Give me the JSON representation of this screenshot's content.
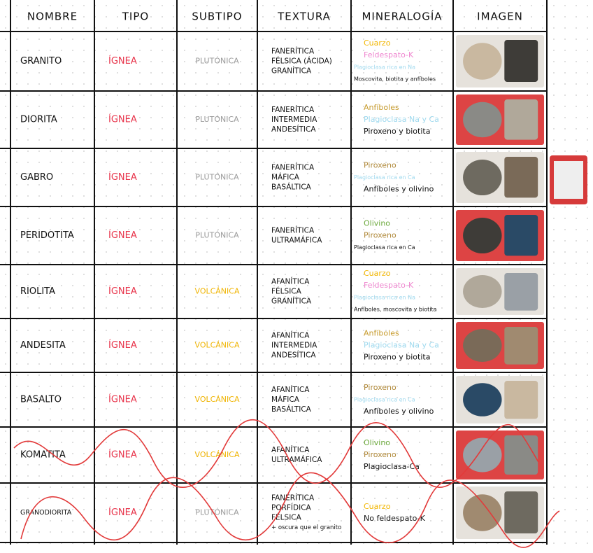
{
  "table": {
    "header": [
      "NOMBRE",
      "TIPO",
      "SUBTIPO",
      "TEXTURA",
      "MINERALOGÍA",
      "IMAGEN"
    ],
    "tipo_color": "#e8334a",
    "rows": [
      {
        "nombre": "GRANITO",
        "tipo": "ÍGNEA",
        "subtipo": "PLUTÓNICA",
        "subtipo_color": "#9a9a9a",
        "textura": [
          "FANERÍTICA",
          "FÉLSICA (ÁCIDA)",
          "GRANÍTICA"
        ],
        "mineralogia": [
          {
            "text": "Cuarzo",
            "color": "#f2b600"
          },
          {
            "text": "Feldespato-K",
            "color": "#ef86cf"
          },
          {
            "text": "Plagioclasa rica en Na",
            "color": "#9fd9ee"
          },
          {
            "text": "Moscovita, biotita y anfíboles",
            "color": "#111111"
          }
        ]
      },
      {
        "nombre": "DIORITA",
        "tipo": "ÍGNEA",
        "subtipo": "PLUTÓNICA",
        "subtipo_color": "#9a9a9a",
        "textura": [
          "FANERÍTICA",
          "INTERMEDIA",
          "ANDESÍTICA"
        ],
        "mineralogia": [
          {
            "text": "Anfíboles",
            "color": "#c79b2c"
          },
          {
            "text": "Plagioclasa Na y Ca",
            "color": "#9fd9ee"
          },
          {
            "text": "Piroxeno y biotita",
            "color": "#111111"
          }
        ]
      },
      {
        "nombre": "GABRO",
        "tipo": "ÍGNEA",
        "subtipo": "PLUTÓNICA",
        "subtipo_color": "#9a9a9a",
        "textura": [
          "FANERÍTICA",
          "MÁFICA",
          "BASÁLTICA"
        ],
        "mineralogia": [
          {
            "text": "Piroxeno",
            "color": "#b0893a"
          },
          {
            "text": "Plagioclasa rica en Ca",
            "color": "#9fd9ee"
          },
          {
            "text": "Anfíboles y olivino",
            "color": "#111111"
          }
        ]
      },
      {
        "nombre": "PERIDOTITA",
        "tipo": "ÍGNEA",
        "subtipo": "PLUTÓNICA",
        "subtipo_color": "#9a9a9a",
        "textura": [
          "FANERÍTICA",
          "ULTRAMÁFICA"
        ],
        "mineralogia": [
          {
            "text": "Olivino",
            "color": "#6aa83a"
          },
          {
            "text": "Piroxeno",
            "color": "#b0893a"
          },
          {
            "text": "Plagioclasa rica en Ca",
            "color": "#111111"
          }
        ]
      },
      {
        "nombre": "RIOLITA",
        "tipo": "ÍGNEA",
        "subtipo": "VOLCÁNICA",
        "subtipo_color": "#f0b400",
        "textura": [
          "AFANÍTICA",
          "FÉLSICA",
          "GRANÍTICA"
        ],
        "mineralogia": [
          {
            "text": "Cuarzo",
            "color": "#f2b600"
          },
          {
            "text": "Feldespato-K",
            "color": "#ef86cf"
          },
          {
            "text": "Plagioclasa rica en Na",
            "color": "#9fd9ee"
          },
          {
            "text": "Anfíboles, moscovita y biotita",
            "color": "#111111"
          }
        ]
      },
      {
        "nombre": "ANDESITA",
        "tipo": "ÍGNEA",
        "subtipo": "VOLCÁNICA",
        "subtipo_color": "#f0b400",
        "textura": [
          "AFANÍTICA",
          "INTERMEDIA",
          "ANDESÍTICA"
        ],
        "mineralogia": [
          {
            "text": "Anfíboles",
            "color": "#c79b2c"
          },
          {
            "text": "Plagioclasa Na y Ca",
            "color": "#9fd9ee"
          },
          {
            "text": "Piroxeno y biotita",
            "color": "#111111"
          }
        ]
      },
      {
        "nombre": "BASALTO",
        "tipo": "ÍGNEA",
        "subtipo": "VOLCÁNICA",
        "subtipo_color": "#f0b400",
        "textura": [
          "AFANÍTICA",
          "MÁFICA",
          "BASÁLTICA"
        ],
        "mineralogia": [
          {
            "text": "Piroxeno",
            "color": "#b0893a"
          },
          {
            "text": "Plagioclasa rica en Ca",
            "color": "#9fd9ee"
          },
          {
            "text": "Anfíboles y olivino",
            "color": "#111111"
          }
        ]
      },
      {
        "nombre": "KOMATITA",
        "tipo": "ÍGNEA",
        "subtipo": "VOLCÁNICA",
        "subtipo_color": "#f0b400",
        "textura": [
          "AFANÍTICA",
          "ULTRAMÁFICA"
        ],
        "mineralogia": [
          {
            "text": "Olivino",
            "color": "#6aa83a"
          },
          {
            "text": "Piroxeno",
            "color": "#b0893a"
          },
          {
            "text": "Plagioclasa-Ca",
            "color": "#111111"
          }
        ]
      },
      {
        "nombre": "GRANODIORITA",
        "tipo": "ÍGNEA",
        "subtipo": "PLUTÓNICA",
        "subtipo_color": "#9a9a9a",
        "textura": [
          "FANERÍTICA",
          "PORFÍDICA",
          "FÉLSICA",
          "+ oscura que el granito"
        ],
        "mineralogia": [
          {
            "text": "Cuarzo",
            "color": "#f2b600"
          },
          {
            "text": "No feldespato-K",
            "color": "#111111"
          }
        ]
      }
    ]
  }
}
